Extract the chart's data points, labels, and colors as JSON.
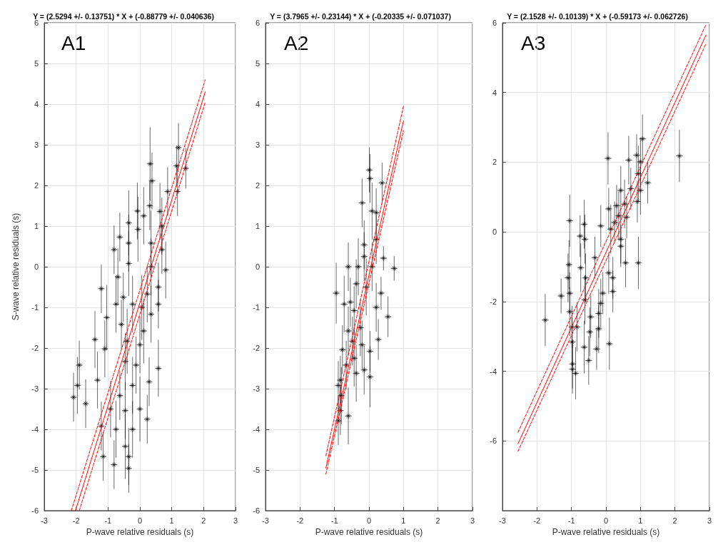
{
  "chart_data": [
    {
      "type": "scatter",
      "title": "Y = (2.5294 +/- 0.13751) * X + (-0.88779 +/- 0.040636)",
      "xlabel": "P-wave relative residuals (s)",
      "ylabel": "S-wave relative residuals (s)",
      "annotations": [
        "A1"
      ],
      "xlim": [
        -3,
        3
      ],
      "ylim": [
        -6,
        6
      ],
      "xticks": [
        -3,
        -2,
        -1,
        0,
        1,
        2,
        3
      ],
      "yticks": [
        -6,
        -5,
        -4,
        -3,
        -2,
        -1,
        0,
        1,
        2,
        3,
        4,
        5,
        6
      ],
      "grid": true,
      "series": [
        {
          "marker": "cross",
          "color": "#000000",
          "x": [
            1.21,
            1.44,
            0.32,
            0.38,
            1.15,
            0.87,
            1.18,
            -0.08,
            0.31,
            0.63,
            -0.63,
            -0.06,
            0.69,
            -0.81,
            -0.35,
            0.35,
            0.81,
            -1.21,
            -0.75,
            -1.04,
            -1.41,
            -1.9,
            -1.96,
            -2.08,
            -1.7,
            -1.33,
            -1.1,
            0.58,
            -1.21,
            -1.15,
            -0.81,
            -0.35,
            -0.35,
            -0.46,
            -0.75,
            0.23,
            -0.46,
            0,
            -0.23,
            0.29,
            -0.46,
            0.12,
            0.35,
            0.58,
            -0.23,
            -0.4,
            0,
            -0.52,
            -0.35,
            0.35,
            0.12,
            -0.35,
            -0.69,
            0.58,
            0.69,
            -0.92,
            -0.23,
            -0.63,
            -0.12,
            0.06,
            0.23,
            -0.58
          ],
          "values": [
            2.93,
            2.42,
            2.53,
            2.11,
            2.48,
            1.85,
            1.85,
            1.37,
            1.5,
            1.36,
            0.73,
            0.92,
            1.0,
            0.42,
            0.58,
            0.58,
            -0.08,
            -0.54,
            -0.92,
            -1.25,
            -1.79,
            -2.42,
            -2.92,
            -3.21,
            -3.37,
            -2.79,
            -2.02,
            -2.5,
            -3.92,
            -4.67,
            -4.87,
            -4.96,
            -4.67,
            -4.42,
            -4.0,
            -3.75,
            -3.54,
            -3.5,
            -2.92,
            -2.83,
            -2.33,
            -1.58,
            -1.17,
            -0.92,
            -0.92,
            -1.83,
            -1.92,
            -0.75,
            0.08,
            0,
            1.25,
            1.08,
            -0.25,
            -0.5,
            0.42,
            -3.5,
            -4.0,
            -3.17,
            -2.42,
            -1.0,
            -0.67,
            -1.42
          ],
          "errors": [
            0.6,
            0.5,
            0.9,
            0.7,
            0.5,
            0.6,
            0.6,
            0.7,
            0.6,
            0.7,
            0.6,
            0.8,
            0.7,
            0.6,
            0.7,
            0.8,
            0.7,
            0.6,
            0.7,
            0.8,
            0.7,
            0.6,
            0.7,
            0.6,
            0.6,
            0.7,
            0.7,
            0.7,
            0.6,
            0.6,
            0.6,
            0.6,
            0.7,
            0.8,
            0.7,
            0.6,
            0.7,
            0.8,
            0.7,
            0.6,
            0.7,
            0.8,
            0.7,
            0.6,
            0.7,
            0.8,
            0.7,
            0.6,
            0.8,
            0.7,
            0.7,
            0.8,
            0.7,
            0.6,
            0.6,
            0.7,
            0.7,
            0.6,
            0.7,
            0.8,
            0.7,
            0.6
          ],
          "xerrors": [
            0.1,
            0.1,
            0.1,
            0.1,
            0.1,
            0.1,
            0.1,
            0.1,
            0.1,
            0.1,
            0.1,
            0.1,
            0.1,
            0.1,
            0.1,
            0.1,
            0.1,
            0.1,
            0.1,
            0.1,
            0.1,
            0.1,
            0.1,
            0.1,
            0.1,
            0.1,
            0.1,
            0.1,
            0.1,
            0.1,
            0.1,
            0.1,
            0.1,
            0.1,
            0.1,
            0.1,
            0.1,
            0.1,
            0.1,
            0.1,
            0.1,
            0.1,
            0.1,
            0.1,
            0.1,
            0.1,
            0.1,
            0.1,
            0.1,
            0.1,
            0.1,
            0.1,
            0.1,
            0.1,
            0.1,
            0.1,
            0.1,
            0.1,
            0.1,
            0.1,
            0.1,
            0.1
          ]
        },
        {
          "type": "line",
          "color": "#ff0000",
          "line_style": "solid",
          "x": [
            -2.02,
            2.05
          ],
          "values": [
            -6.0,
            4.3
          ]
        },
        {
          "type": "line",
          "color": "#ff0000",
          "line_style": "dashed",
          "x": [
            -2.15,
            2.05
          ],
          "values": [
            -6.0,
            4.6
          ]
        },
        {
          "type": "line",
          "color": "#ff0000",
          "line_style": "dashed",
          "x": [
            -1.9,
            2.05
          ],
          "values": [
            -6.0,
            4.05
          ]
        }
      ]
    },
    {
      "type": "scatter",
      "title": "Y = (3.7965 +/- 0.23144) * X + (-0.20335 +/- 0.071037)",
      "xlabel": "P-wave relative residuals (s)",
      "annotations": [
        "A2"
      ],
      "xlim": [
        -3,
        3
      ],
      "ylim": [
        -6,
        6
      ],
      "xticks": [
        -3,
        -2,
        -1,
        0,
        1,
        2,
        3
      ],
      "yticks": [
        -6,
        -5,
        -4,
        -3,
        -2,
        -1,
        0,
        1,
        2,
        3,
        4,
        5,
        6
      ],
      "grid": true,
      "series": [
        {
          "marker": "cross",
          "color": "#000000",
          "x": [
            0.01,
            0.03,
            -0.2,
            0.38,
            0.21,
            0.09,
            0.21,
            -0.14,
            0.42,
            0.73,
            -0.95,
            -0.31,
            -0.6,
            -0.14,
            0.09,
            -0.72,
            0.35,
            0.55,
            0.21,
            -0.43,
            -0.25,
            -0.6,
            0.27,
            -0.77,
            -0.2,
            0.03,
            -0.43,
            -0.66,
            -0.14,
            0.03,
            -0.83,
            -0.89,
            -0.8,
            -0.83,
            -0.89,
            -0.6,
            -0.37,
            -0.48,
            -0.08,
            -0.37,
            -0.54
          ],
          "values": [
            2.38,
            2.17,
            1.57,
            2.06,
            1.33,
            1.37,
            0.67,
            0.54,
            0.21,
            -0.04,
            -0.65,
            0,
            0,
            0.25,
            0,
            -0.92,
            -0.65,
            -1.23,
            -1.0,
            -1.08,
            -1.5,
            -1.58,
            -1.79,
            -2.04,
            -1.92,
            -2.08,
            -2.25,
            -2.42,
            -2.54,
            -2.71,
            -2.79,
            -2.92,
            -3.17,
            -3.54,
            -3.79,
            -3.67,
            -2.62,
            -1.83,
            -0.5,
            -0.42,
            -0.87
          ],
          "errors": [
            0.55,
            0.6,
            0.6,
            0.5,
            0.6,
            0.7,
            0.6,
            0.6,
            0.3,
            0.3,
            0.75,
            0.7,
            0.6,
            0.6,
            0.6,
            0.7,
            0.4,
            0.5,
            0.6,
            0.6,
            0.7,
            0.6,
            0.5,
            0.6,
            0.6,
            0.5,
            0.7,
            0.6,
            0.6,
            0.75,
            0.6,
            0.6,
            0.7,
            0.6,
            0.6,
            0.7,
            0.7,
            0.6,
            0.7,
            0.6,
            0.6
          ],
          "xerrors": [
            0.1,
            0.1,
            0.1,
            0.1,
            0.1,
            0.1,
            0.1,
            0.1,
            0.1,
            0.1,
            0.1,
            0.1,
            0.1,
            0.1,
            0.1,
            0.1,
            0.1,
            0.1,
            0.1,
            0.1,
            0.1,
            0.1,
            0.1,
            0.1,
            0.1,
            0.1,
            0.1,
            0.1,
            0.1,
            0.1,
            0.1,
            0.1,
            0.1,
            0.1,
            0.1,
            0.1,
            0.1,
            0.1,
            0.1,
            0.1,
            0.1
          ]
        },
        {
          "type": "line",
          "color": "#ff0000",
          "line_style": "solid",
          "x": [
            -1.25,
            1.0
          ],
          "values": [
            -4.95,
            3.59
          ]
        },
        {
          "type": "line",
          "color": "#ff0000",
          "line_style": "dashed",
          "x": [
            -1.25,
            1.0
          ],
          "values": [
            -4.65,
            3.95
          ]
        },
        {
          "type": "line",
          "color": "#ff0000",
          "line_style": "dashed",
          "x": [
            -1.25,
            1.0
          ],
          "values": [
            -5.1,
            3.35
          ]
        }
      ]
    },
    {
      "type": "scatter",
      "title": "Y = (2.1528 +/- 0.10139) * X + (-0.59173 +/- 0.062726)",
      "xlabel": "P-wave relative residuals (s)",
      "annotations": [
        "A3"
      ],
      "xlim": [
        -3,
        3
      ],
      "ylim": [
        -8,
        6
      ],
      "xticks": [
        -3,
        -2,
        -1,
        0,
        1,
        2,
        3
      ],
      "yticks": [
        -6,
        -4,
        -2,
        0,
        2,
        4,
        6
      ],
      "grid": true,
      "series": [
        {
          "marker": "cross",
          "color": "#000000",
          "x": [
            2.13,
            0.06,
            1.06,
            0.89,
            1.0,
            0.66,
            0.94,
            1.21,
            1.0,
            0.72,
            0.43,
            0.91,
            0.54,
            0.31,
            0.08,
            0.37,
            0.6,
            -0.15,
            0.14,
            0.25,
            0.43,
            0.43,
            0.57,
            0.94,
            0.08,
            0.2,
            0.2,
            -1.05,
            -0.63,
            -0.75,
            -0.61,
            -0.32,
            -1.07,
            -0.73,
            -1.1,
            -0.59,
            -1.05,
            -1.3,
            -0.09,
            -1.76,
            -1.05,
            -0.61,
            -0.15,
            -0.84,
            -0.44,
            -0.21,
            -0.21,
            -0.47,
            -0.98,
            -0.98,
            -0.63,
            -0.27,
            0.1,
            -0.97,
            -0.97,
            -0.88,
            -0.5
          ],
          "values": [
            2.18,
            2.11,
            2.67,
            2.2,
            2.01,
            2.06,
            1.67,
            1.41,
            1.19,
            1.24,
            1.19,
            0.87,
            0.8,
            0.75,
            0.66,
            0.46,
            0.42,
            0.17,
            0.08,
            0.27,
            -0.21,
            -0.41,
            -0.89,
            -0.89,
            -1.18,
            -1.32,
            -1.71,
            0.32,
            0.22,
            -0.12,
            -0.21,
            -0.74,
            -0.94,
            -1.03,
            -1.32,
            -1.32,
            -1.76,
            -1.84,
            -1.76,
            -2.53,
            -2.29,
            -1.95,
            -2.05,
            -2.73,
            -2.44,
            -2.34,
            -2.78,
            -2.87,
            -2.73,
            -3.16,
            -3.31,
            -3.36,
            -3.21,
            -3.79,
            -3.94,
            -4.06,
            -3.69
          ],
          "errors": [
            0.75,
            0.75,
            0.7,
            0.6,
            0.7,
            0.7,
            0.8,
            0.6,
            0.7,
            0.6,
            0.7,
            0.6,
            0.7,
            0.6,
            0.6,
            0.7,
            0.6,
            0.6,
            0.7,
            0.6,
            0.7,
            0.6,
            0.7,
            0.75,
            0.6,
            0.6,
            0.6,
            0.75,
            0.7,
            0.6,
            0.7,
            0.6,
            0.7,
            0.7,
            0.7,
            0.7,
            0.6,
            0.5,
            0.6,
            0.75,
            0.7,
            0.7,
            0.7,
            0.7,
            0.6,
            0.7,
            0.7,
            0.7,
            0.6,
            0.7,
            0.75,
            0.6,
            0.75,
            0.7,
            0.7,
            0.75,
            0.7
          ],
          "xerrors": [
            0.1,
            0.1,
            0.1,
            0.1,
            0.1,
            0.1,
            0.1,
            0.1,
            0.1,
            0.1,
            0.1,
            0.1,
            0.1,
            0.1,
            0.1,
            0.1,
            0.1,
            0.1,
            0.1,
            0.1,
            0.1,
            0.1,
            0.1,
            0.1,
            0.1,
            0.1,
            0.1,
            0.1,
            0.1,
            0.1,
            0.1,
            0.1,
            0.1,
            0.1,
            0.1,
            0.1,
            0.1,
            0.1,
            0.1,
            0.1,
            0.1,
            0.1,
            0.1,
            0.1,
            0.1,
            0.1,
            0.1,
            0.1,
            0.1,
            0.1,
            0.1,
            0.1,
            0.1,
            0.1,
            0.1,
            0.1,
            0.1
          ]
        },
        {
          "type": "line",
          "color": "#ff0000",
          "line_style": "solid",
          "x": [
            -2.55,
            2.9
          ],
          "values": [
            -6.08,
            5.65
          ]
        },
        {
          "type": "line",
          "color": "#ff0000",
          "line_style": "dashed",
          "x": [
            -2.55,
            2.9
          ],
          "values": [
            -5.75,
            5.95
          ]
        },
        {
          "type": "line",
          "color": "#ff0000",
          "line_style": "dashed",
          "x": [
            -2.55,
            2.9
          ],
          "values": [
            -6.3,
            5.4
          ]
        }
      ]
    }
  ]
}
